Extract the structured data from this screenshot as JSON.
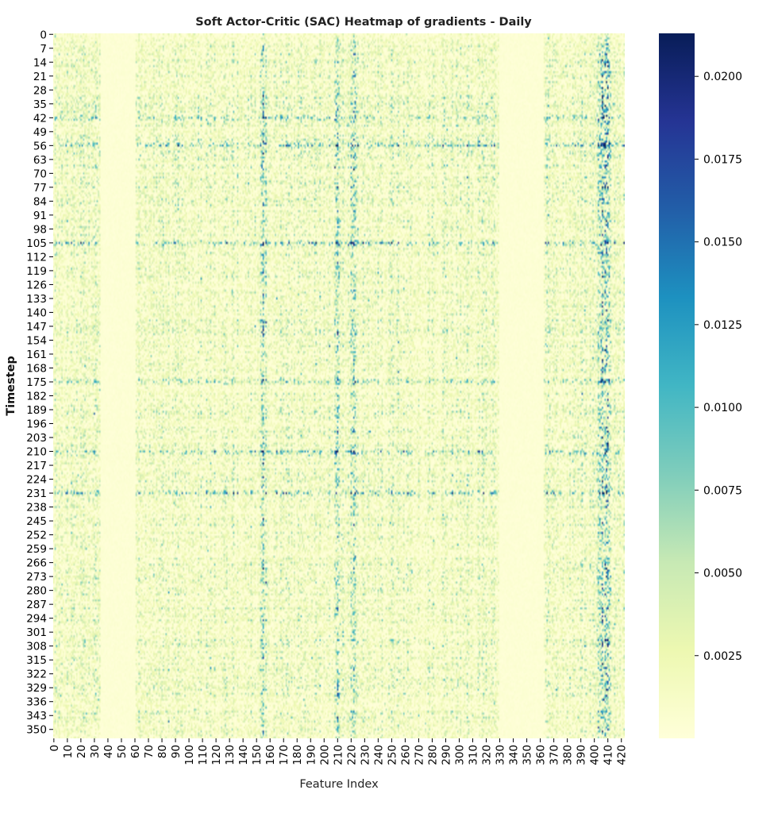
{
  "chart_data": {
    "type": "heatmap",
    "title": "Soft Actor-Critic (SAC) Heatmap of gradients - Daily",
    "xlabel": "Feature Index",
    "ylabel": "Timestep",
    "n_features": 423,
    "n_timesteps": 355,
    "x_ticks": [
      0,
      10,
      20,
      30,
      40,
      50,
      60,
      70,
      80,
      90,
      100,
      110,
      120,
      130,
      140,
      150,
      160,
      170,
      180,
      190,
      200,
      210,
      220,
      230,
      240,
      250,
      260,
      270,
      280,
      290,
      300,
      310,
      320,
      330,
      340,
      350,
      360,
      370,
      380,
      390,
      400,
      410,
      420
    ],
    "y_ticks": [
      0,
      7,
      14,
      21,
      28,
      35,
      42,
      49,
      56,
      63,
      70,
      77,
      84,
      91,
      98,
      105,
      112,
      119,
      126,
      133,
      140,
      147,
      154,
      161,
      168,
      175,
      182,
      189,
      196,
      203,
      210,
      217,
      224,
      231,
      238,
      245,
      252,
      259,
      266,
      273,
      280,
      287,
      294,
      301,
      308,
      315,
      322,
      329,
      336,
      343,
      350
    ],
    "colorbar": {
      "colormap": "YlGnBu",
      "vmin": 0.0,
      "vmax": 0.0213,
      "ticks": [
        0.0025,
        0.005,
        0.0075,
        0.01,
        0.0125,
        0.015,
        0.0175,
        0.02
      ],
      "tick_labels": [
        "0.0025",
        "0.0050",
        "0.0075",
        "0.0100",
        "0.0125",
        "0.0150",
        "0.0175",
        "0.0200"
      ]
    },
    "low_gradient_feature_bands": [
      [
        35,
        60
      ],
      [
        330,
        362
      ]
    ],
    "high_gradient_feature_columns": [
      155,
      210,
      222,
      405,
      408,
      410
    ],
    "high_gradient_timestep_rows": [
      42,
      56,
      105,
      175,
      210,
      231
    ],
    "typical_value_range": [
      0.0,
      0.005
    ],
    "peak_value": 0.021
  }
}
